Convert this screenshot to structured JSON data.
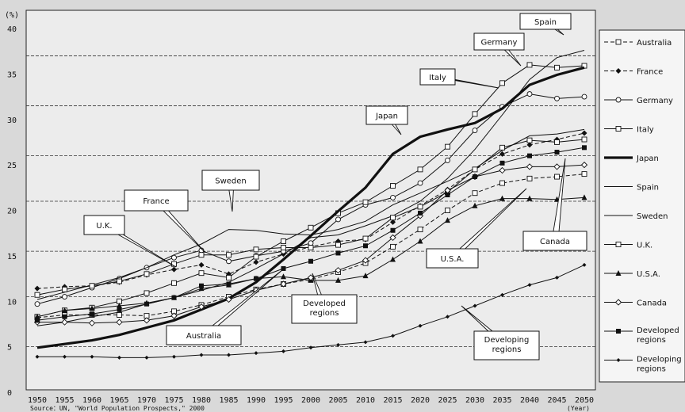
{
  "chart_data": {
    "type": "line",
    "ylabel": "(%)",
    "xlabel": "(Year)",
    "ylim": [
      0,
      40
    ],
    "yticks": [
      0,
      5,
      10,
      15,
      20,
      25,
      30,
      35,
      40
    ],
    "ytick_labels": [
      "0",
      "5",
      "10",
      "15",
      "20",
      "25",
      "30",
      "35",
      "40"
    ],
    "x": [
      1950,
      1955,
      1960,
      1965,
      1970,
      1975,
      1980,
      1985,
      1990,
      1995,
      2000,
      2005,
      2010,
      2015,
      2020,
      2025,
      2030,
      2035,
      2040,
      2045,
      2050
    ],
    "xtick_labels": [
      "1950",
      "1955",
      "1960",
      "1965",
      "1970",
      "1975",
      "1980",
      "1985",
      "1990",
      "1995",
      "2000",
      "2005",
      "2010",
      "2015",
      "2020",
      "2025",
      "2030",
      "2035",
      "2040",
      "2045",
      "2050"
    ],
    "source": "Source：UN, \"World Population Prospects,\" 2000",
    "legend_position": "right",
    "series": [
      {
        "name": "Australia",
        "style": "dashed",
        "marker": "open-square",
        "values": [
          8.2,
          8.5,
          8.5,
          8.5,
          8.4,
          8.9,
          9.6,
          10.5,
          11.3,
          11.9,
          12.4,
          13.2,
          14.2,
          16.0,
          17.9,
          20.0,
          21.9,
          23.0,
          23.5,
          23.7,
          24.0
        ]
      },
      {
        "name": "France",
        "style": "dashed",
        "marker": "filled-diamond",
        "values": [
          11.4,
          11.6,
          11.7,
          12.1,
          12.9,
          13.5,
          14.0,
          13.0,
          14.3,
          15.2,
          16.0,
          16.6,
          16.8,
          18.7,
          20.5,
          22.3,
          24.5,
          26.2,
          27.2,
          27.8,
          28.5
        ]
      },
      {
        "name": "Germany",
        "style": "solid",
        "marker": "open-circle",
        "values": [
          9.7,
          10.5,
          11.5,
          12.5,
          13.7,
          14.8,
          15.6,
          14.4,
          15.0,
          15.5,
          16.4,
          19.0,
          20.6,
          21.4,
          23.0,
          25.5,
          28.8,
          31.4,
          32.8,
          32.3,
          32.5
        ]
      },
      {
        "name": "Italy",
        "style": "solid",
        "marker": "open-square",
        "values": [
          8.3,
          9.0,
          9.3,
          10.0,
          10.9,
          12.0,
          13.1,
          12.6,
          14.9,
          16.6,
          18.1,
          19.7,
          20.9,
          22.7,
          24.5,
          27.0,
          30.6,
          34.0,
          36.0,
          35.7,
          35.9
        ]
      },
      {
        "name": "Japan",
        "style": "bold",
        "marker": "none",
        "values": [
          4.9,
          5.3,
          5.7,
          6.3,
          7.1,
          7.9,
          9.1,
          10.3,
          12.1,
          14.6,
          17.2,
          19.9,
          22.5,
          26.2,
          28.1,
          28.9,
          29.6,
          31.2,
          33.8,
          34.9,
          35.7
        ]
      },
      {
        "name": "Spain",
        "style": "solid",
        "marker": "none",
        "values": [
          7.3,
          7.7,
          8.3,
          8.8,
          9.7,
          10.4,
          11.2,
          12.1,
          13.6,
          15.2,
          17.0,
          17.3,
          18.3,
          19.4,
          21.0,
          23.5,
          26.7,
          30.5,
          34.4,
          36.8,
          37.6
        ]
      },
      {
        "name": "Sweden",
        "style": "solid",
        "marker": "none",
        "values": [
          10.2,
          11.0,
          11.8,
          12.6,
          13.7,
          15.1,
          16.3,
          17.9,
          17.8,
          17.4,
          17.3,
          17.9,
          18.8,
          20.6,
          21.9,
          23.2,
          24.6,
          26.6,
          28.2,
          28.4,
          28.9
        ]
      },
      {
        "name": "U.K.",
        "style": "solid",
        "marker": "open-square",
        "values": [
          10.7,
          11.3,
          11.7,
          12.2,
          13.0,
          14.1,
          15.1,
          15.1,
          15.7,
          15.9,
          15.9,
          16.2,
          16.9,
          19.2,
          20.4,
          22.0,
          24.5,
          26.9,
          27.7,
          27.5,
          27.8
        ]
      },
      {
        "name": "U.S.A.",
        "style": "solid",
        "marker": "filled-triangle",
        "values": [
          8.3,
          9.0,
          9.2,
          9.5,
          9.8,
          10.4,
          11.4,
          11.8,
          12.5,
          12.7,
          12.3,
          12.3,
          12.8,
          14.6,
          16.6,
          18.9,
          20.5,
          21.3,
          21.3,
          21.2,
          21.4
        ]
      },
      {
        "name": "Canada",
        "style": "solid",
        "marker": "open-diamond",
        "values": [
          7.7,
          7.7,
          7.6,
          7.7,
          7.9,
          8.4,
          9.4,
          10.2,
          11.2,
          11.9,
          12.6,
          13.4,
          14.5,
          17.0,
          19.4,
          22.2,
          23.7,
          24.4,
          24.8,
          24.8,
          25.0
        ]
      },
      {
        "name": "Developed regions",
        "style": "solid",
        "marker": "filled-square",
        "values": [
          7.9,
          8.3,
          8.6,
          9.1,
          9.7,
          10.4,
          11.7,
          11.9,
          12.5,
          13.6,
          14.4,
          15.3,
          16.1,
          17.8,
          19.7,
          21.7,
          23.7,
          25.2,
          26.0,
          26.4,
          26.9
        ]
      },
      {
        "name": "Developing regions",
        "style": "solid",
        "marker": "small-plus",
        "values": [
          3.9,
          3.9,
          3.9,
          3.8,
          3.8,
          3.9,
          4.1,
          4.1,
          4.3,
          4.5,
          4.9,
          5.2,
          5.5,
          6.2,
          7.3,
          8.3,
          9.5,
          10.7,
          11.8,
          12.6,
          14.0
        ]
      }
    ],
    "annotations": [
      {
        "text": "Spain",
        "series": "Spain"
      },
      {
        "text": "Germany",
        "series": "Germany"
      },
      {
        "text": "Italy",
        "series": "Italy"
      },
      {
        "text": "Japan",
        "series": "Japan"
      },
      {
        "text": "Sweden",
        "series": "Sweden"
      },
      {
        "text": "France",
        "series": "France"
      },
      {
        "text": "U.K.",
        "series": "U.K."
      },
      {
        "text": "Australia",
        "series": "Australia"
      },
      {
        "text": "Developed regions",
        "series": "Developed regions"
      },
      {
        "text": "U.S.A.",
        "series": "U.S.A."
      },
      {
        "text": "Canada",
        "series": "Canada"
      },
      {
        "text": "Developing regions",
        "series": "Developing regions"
      }
    ],
    "legend": [
      {
        "label": "Australia"
      },
      {
        "label": "France"
      },
      {
        "label": "Germany"
      },
      {
        "label": "Italy"
      },
      {
        "label": "Japan"
      },
      {
        "label": "Spain"
      },
      {
        "label": "Sweden"
      },
      {
        "label": "U.K."
      },
      {
        "label": "U.S.A."
      },
      {
        "label": "Canada"
      },
      {
        "label": "Developed regions"
      },
      {
        "label": "Developing regions"
      }
    ],
    "gridlines": [
      37,
      31.5,
      26,
      21,
      15.5,
      10.5,
      5
    ],
    "colors": {
      "background": "#d9d9d9",
      "plot": "#eeeeee",
      "line": "#111111"
    }
  }
}
